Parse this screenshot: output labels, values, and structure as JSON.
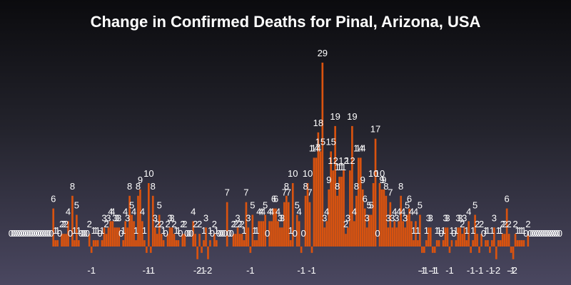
{
  "chart_data": {
    "type": "bar",
    "title": "Change in Confirmed Deaths for Pinal, Arizona, USA",
    "xlabel": "",
    "ylabel": "",
    "ylim": [
      -2,
      29
    ],
    "grid": false,
    "legend": "none",
    "bar_color": "#d9530f",
    "label_color": "#ffffff",
    "values": [
      0,
      0,
      0,
      0,
      0,
      0,
      0,
      0,
      0,
      0,
      0,
      0,
      0,
      0,
      0,
      0,
      0,
      0,
      0,
      0,
      6,
      1,
      1,
      0,
      2,
      2,
      2,
      4,
      0,
      8,
      1,
      5,
      1,
      0,
      0,
      0,
      0,
      2,
      -1,
      1,
      1,
      1,
      0,
      1,
      3,
      2,
      3,
      4,
      4,
      3,
      3,
      3,
      0,
      1,
      4,
      3,
      8,
      5,
      4,
      1,
      8,
      9,
      4,
      1,
      -1,
      10,
      -1,
      8,
      3,
      2,
      5,
      2,
      1,
      0,
      2,
      3,
      3,
      2,
      1,
      1,
      0,
      2,
      2,
      0,
      0,
      0,
      4,
      2,
      -2,
      2,
      -1,
      1,
      3,
      -2,
      1,
      0,
      2,
      1,
      0,
      0,
      0,
      0,
      7,
      0,
      0,
      2,
      2,
      3,
      2,
      2,
      1,
      7,
      3,
      -1,
      5,
      1,
      1,
      4,
      4,
      4,
      5,
      0,
      4,
      4,
      6,
      6,
      4,
      3,
      3,
      7,
      8,
      7,
      1,
      10,
      0,
      5,
      4,
      -1,
      0,
      8,
      10,
      7,
      -1,
      14,
      14,
      18,
      15,
      29,
      3,
      4,
      9,
      15,
      12,
      19,
      8,
      11,
      11,
      12,
      2,
      3,
      12,
      19,
      4,
      8,
      14,
      14,
      9,
      6,
      3,
      5,
      5,
      10,
      17,
      0,
      10,
      9,
      9,
      8,
      3,
      7,
      3,
      4,
      3,
      4,
      8,
      4,
      3,
      5,
      6,
      4,
      1,
      4,
      1,
      5,
      -1,
      -1,
      1,
      3,
      3,
      -1,
      -1,
      1,
      1,
      0,
      1,
      3,
      3,
      -1,
      1,
      0,
      1,
      3,
      3,
      2,
      3,
      1,
      4,
      -1,
      1,
      5,
      2,
      -1,
      2,
      0,
      1,
      1,
      -1,
      1,
      3,
      -2,
      1,
      1,
      2,
      2,
      6,
      2,
      -1,
      -2,
      2,
      1,
      1,
      1,
      1,
      0,
      2,
      0,
      0,
      0,
      0,
      0,
      0,
      0,
      0,
      0,
      0,
      0,
      0,
      0,
      0,
      0
    ]
  }
}
